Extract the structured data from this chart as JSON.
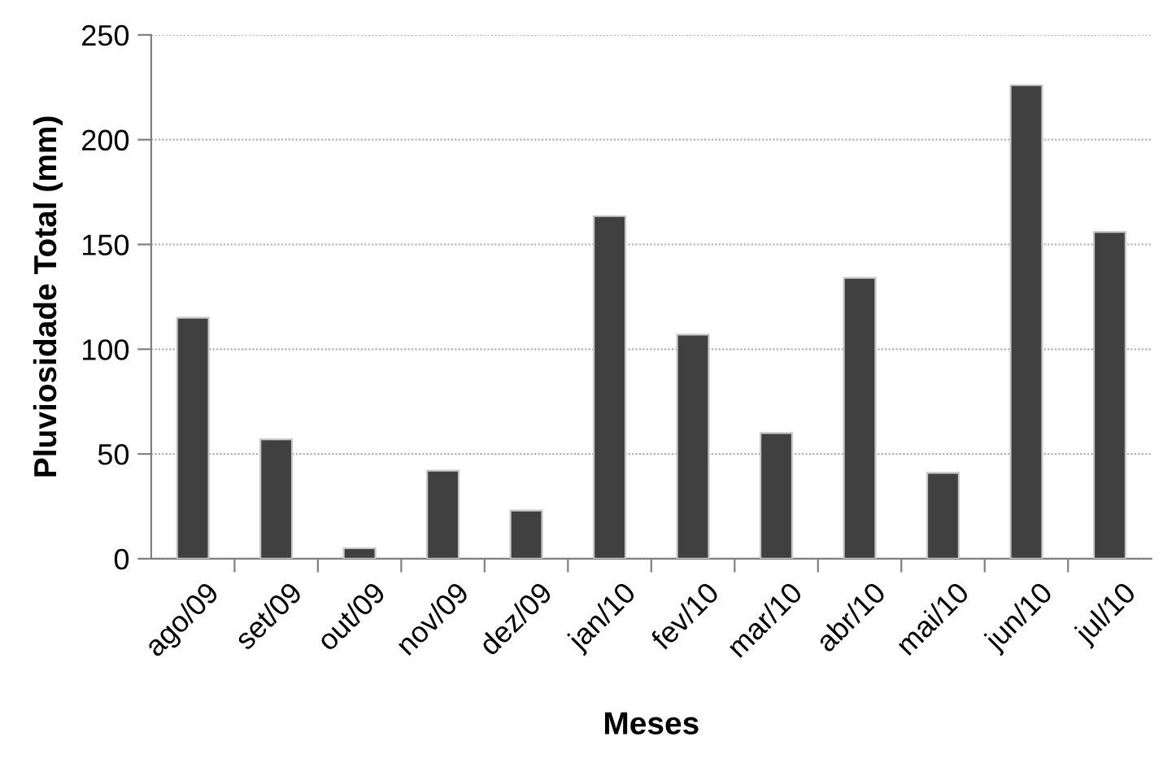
{
  "chart_data": {
    "type": "bar",
    "categories": [
      "ago/09",
      "set/09",
      "out/09",
      "nov/09",
      "dez/09",
      "jan/10",
      "fev/10",
      "mar/10",
      "abr/10",
      "mai/10",
      "jun/10",
      "jul/10"
    ],
    "values": [
      115,
      57,
      5,
      42,
      23,
      163.5,
      107,
      60,
      134,
      41,
      226,
      156
    ],
    "color": "#404040",
    "xlabel": "Meses",
    "ylabel": "Pluviosidade Total (mm)",
    "ylim": [
      0,
      250
    ],
    "yticks": [
      0,
      50,
      100,
      150,
      200,
      250
    ],
    "grid": "y"
  }
}
